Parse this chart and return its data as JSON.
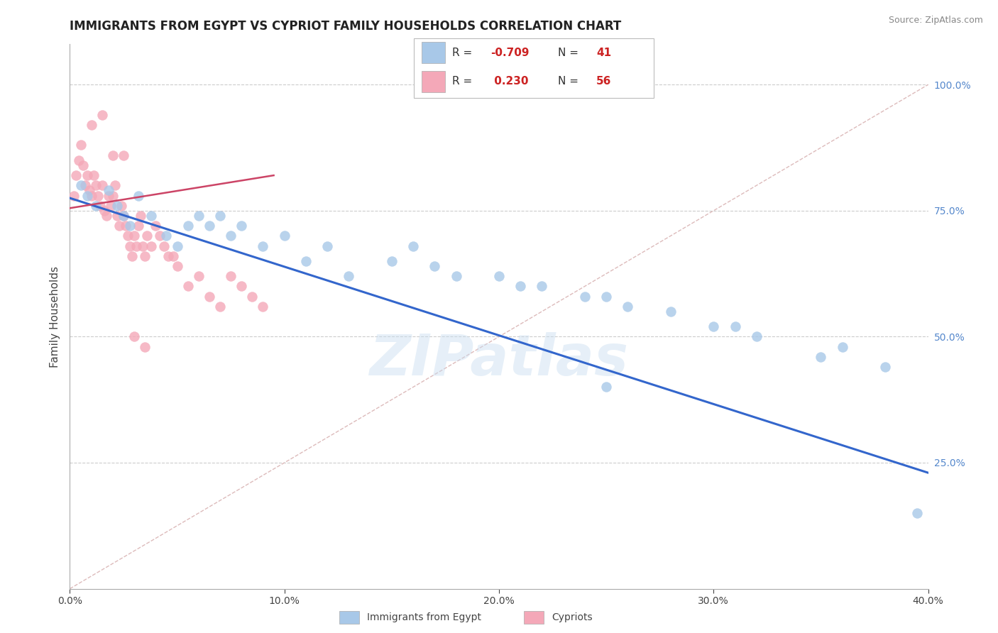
{
  "title": "IMMIGRANTS FROM EGYPT VS CYPRIOT FAMILY HOUSEHOLDS CORRELATION CHART",
  "source_text": "Source: ZipAtlas.com",
  "ylabel": "Family Households",
  "xlim": [
    0.0,
    0.4
  ],
  "ylim": [
    0.0,
    1.08
  ],
  "xticks": [
    0.0,
    0.1,
    0.2,
    0.3,
    0.4
  ],
  "xtick_labels": [
    "0.0%",
    "10.0%",
    "20.0%",
    "30.0%",
    "40.0%"
  ],
  "yticks_right": [
    0.25,
    0.5,
    0.75,
    1.0
  ],
  "ytick_labels_right": [
    "25.0%",
    "50.0%",
    "75.0%",
    "100.0%"
  ],
  "blue_scatter_x": [
    0.005,
    0.008,
    0.012,
    0.018,
    0.022,
    0.025,
    0.028,
    0.032,
    0.038,
    0.045,
    0.05,
    0.055,
    0.06,
    0.065,
    0.07,
    0.075,
    0.08,
    0.09,
    0.1,
    0.11,
    0.12,
    0.13,
    0.15,
    0.16,
    0.17,
    0.18,
    0.2,
    0.21,
    0.22,
    0.24,
    0.25,
    0.26,
    0.28,
    0.3,
    0.31,
    0.32,
    0.35,
    0.36,
    0.38,
    0.395,
    0.25
  ],
  "blue_scatter_y": [
    0.8,
    0.78,
    0.76,
    0.79,
    0.76,
    0.74,
    0.72,
    0.78,
    0.74,
    0.7,
    0.68,
    0.72,
    0.74,
    0.72,
    0.74,
    0.7,
    0.72,
    0.68,
    0.7,
    0.65,
    0.68,
    0.62,
    0.65,
    0.68,
    0.64,
    0.62,
    0.62,
    0.6,
    0.6,
    0.58,
    0.58,
    0.56,
    0.55,
    0.52,
    0.52,
    0.5,
    0.46,
    0.48,
    0.44,
    0.15,
    0.4
  ],
  "pink_scatter_x": [
    0.002,
    0.003,
    0.004,
    0.005,
    0.006,
    0.007,
    0.008,
    0.009,
    0.01,
    0.011,
    0.012,
    0.013,
    0.014,
    0.015,
    0.016,
    0.017,
    0.018,
    0.019,
    0.02,
    0.021,
    0.022,
    0.023,
    0.024,
    0.025,
    0.026,
    0.027,
    0.028,
    0.029,
    0.03,
    0.031,
    0.032,
    0.033,
    0.034,
    0.035,
    0.036,
    0.038,
    0.04,
    0.042,
    0.044,
    0.046,
    0.048,
    0.05,
    0.055,
    0.06,
    0.065,
    0.07,
    0.075,
    0.08,
    0.085,
    0.09,
    0.01,
    0.015,
    0.02,
    0.025,
    0.03,
    0.035
  ],
  "pink_scatter_y": [
    0.78,
    0.82,
    0.85,
    0.88,
    0.84,
    0.8,
    0.82,
    0.79,
    0.78,
    0.82,
    0.8,
    0.78,
    0.76,
    0.8,
    0.75,
    0.74,
    0.78,
    0.76,
    0.78,
    0.8,
    0.74,
    0.72,
    0.76,
    0.74,
    0.72,
    0.7,
    0.68,
    0.66,
    0.7,
    0.68,
    0.72,
    0.74,
    0.68,
    0.66,
    0.7,
    0.68,
    0.72,
    0.7,
    0.68,
    0.66,
    0.66,
    0.64,
    0.6,
    0.62,
    0.58,
    0.56,
    0.62,
    0.6,
    0.58,
    0.56,
    0.92,
    0.94,
    0.86,
    0.86,
    0.5,
    0.48
  ],
  "blue_line_x": [
    0.0,
    0.4
  ],
  "blue_line_y": [
    0.775,
    0.23
  ],
  "pink_line_x": [
    0.0,
    0.095
  ],
  "pink_line_y": [
    0.755,
    0.82
  ],
  "diag_line_x": [
    0.0,
    0.4
  ],
  "diag_line_y": [
    0.0,
    1.0
  ],
  "watermark": "ZIPatlas",
  "scatter_size": 100,
  "blue_color": "#a8c8e8",
  "blue_edge_color": "#a8c8e8",
  "pink_color": "#f4a8b8",
  "pink_edge_color": "#f4a8b8",
  "blue_line_color": "#3366cc",
  "pink_line_color": "#cc4466",
  "diag_line_color": "#ddbbbb",
  "grid_color": "#cccccc",
  "background_color": "#ffffff",
  "title_fontsize": 12,
  "label_fontsize": 11,
  "tick_fontsize": 10,
  "legend_fontsize": 11,
  "legend_R_text": [
    "R = ",
    "R = "
  ],
  "legend_R_vals": [
    "-0.709",
    " 0.230"
  ],
  "legend_N_text": [
    "N = ",
    "N = "
  ],
  "legend_N_vals": [
    "41",
    "56"
  ],
  "legend_patch_colors": [
    "#a8c8e8",
    "#f4a8b8"
  ],
  "legend_val_color": "#cc2222",
  "bottom_label1": "Immigrants from Egypt",
  "bottom_label2": "Cypriots"
}
